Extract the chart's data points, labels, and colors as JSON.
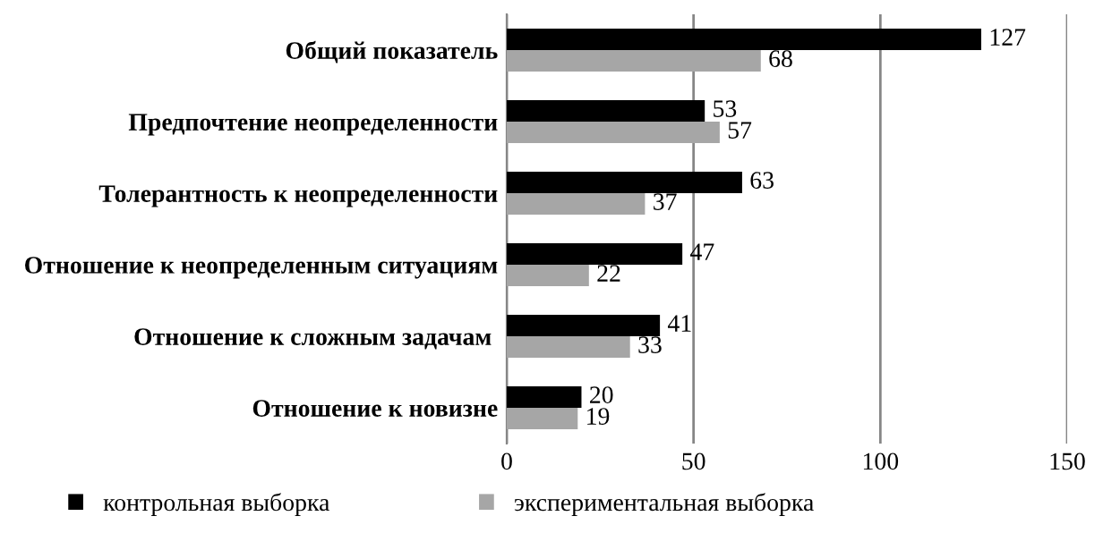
{
  "chart_data": {
    "type": "bar",
    "orientation": "horizontal",
    "categories": [
      "Общий показатель",
      "Предпочтение неопределенности",
      "Толерантность к неопределенности",
      "Отношение к неопределенным ситуациям",
      "Отношение к сложным задачам ",
      "Отношение к новизне"
    ],
    "series": [
      {
        "name": "контрольная выборка",
        "color": "#000000",
        "values": [
          127,
          53,
          63,
          47,
          41,
          20
        ]
      },
      {
        "name": "экспериментальная выборка",
        "color": "#a6a6a6",
        "values": [
          68,
          57,
          37,
          22,
          33,
          19
        ]
      }
    ],
    "xlim": [
      0,
      150
    ],
    "xticks": [
      0,
      50,
      100,
      150
    ],
    "grid": "x",
    "legend": "bottom",
    "data_labels": true
  }
}
